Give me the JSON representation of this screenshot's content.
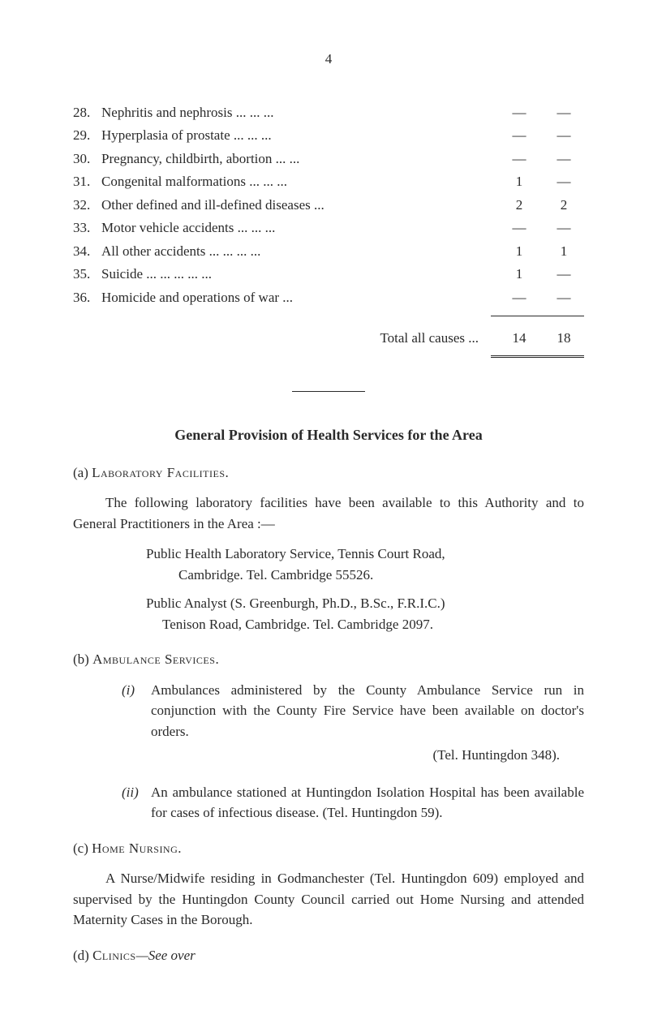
{
  "pageNumber": "4",
  "tableRows": [
    {
      "num": "28.",
      "label": "Nephritis and nephrosis",
      "dots": "...   ...   ...",
      "col1": "—",
      "col2": "—"
    },
    {
      "num": "29.",
      "label": "Hyperplasia of prostate",
      "dots": "...   ...   ...",
      "col1": "—",
      "col2": "—"
    },
    {
      "num": "30.",
      "label": "Pregnancy, childbirth, abortion",
      "dots": "...   ...",
      "col1": "—",
      "col2": "—"
    },
    {
      "num": "31.",
      "label": "Congenital malformations",
      "dots": "...   ...   ...",
      "col1": "1",
      "col2": "—"
    },
    {
      "num": "32.",
      "label": "Other defined and ill-defined diseases",
      "dots": "...",
      "col1": "2",
      "col2": "2"
    },
    {
      "num": "33.",
      "label": "Motor vehicle accidents",
      "dots": "...   ...   ...",
      "col1": "—",
      "col2": "—"
    },
    {
      "num": "34.",
      "label": "All other accidents ...",
      "dots": "...   ...   ...",
      "col1": "1",
      "col2": "1"
    },
    {
      "num": "35.",
      "label": "Suicide          ...   ...",
      "dots": "...   ...   ...",
      "col1": "1",
      "col2": "—"
    },
    {
      "num": "36.",
      "label": "Homicide and operations of war",
      "dots": "...",
      "col1": "—",
      "col2": "—"
    }
  ],
  "totalLabel": "Total all causes ...",
  "totalCol1": "14",
  "totalCol2": "18",
  "sectionTitle": "General Provision of Health Services for the Area",
  "subA": {
    "label": "(a)",
    "title": "Laboratory Facilities.",
    "para": "The following laboratory facilities have been available to this Authority and to General Practitioners in the Area :—",
    "block1a": "Public Health Laboratory Service, Tennis Court Road,",
    "block1b": "Cambridge.            Tel. Cambridge 55526.",
    "block2a": "Public Analyst (S. Greenburgh, Ph.D., B.Sc., F.R.I.C.)",
    "block2b": "Tenison Road, Cambridge.   Tel. Cambridge 2097."
  },
  "subB": {
    "label": "(b)",
    "title": "Ambulance Services.",
    "item1": {
      "label": "(i)",
      "text": "Ambulances administered by the County Ambulance Service run in conjunction with the County Fire Service have been available on doctor's orders.",
      "tel": "(Tel. Huntingdon 348)."
    },
    "item2": {
      "label": "(ii)",
      "text": "An ambulance stationed at Huntingdon Isolation Hospital has been available for cases of infectious disease.                                    (Tel. Huntingdon 59)."
    }
  },
  "subC": {
    "label": "(c)",
    "title": "Home Nursing.",
    "para": "A Nurse/Midwife residing in Godmanchester (Tel. Huntingdon 609) employed and supervised by the Huntingdon County Council carried out Home Nursing and attended Maternity Cases in the Borough."
  },
  "subD": {
    "label": "(d)",
    "title": "Clinics",
    "seeOver": "—See over"
  }
}
